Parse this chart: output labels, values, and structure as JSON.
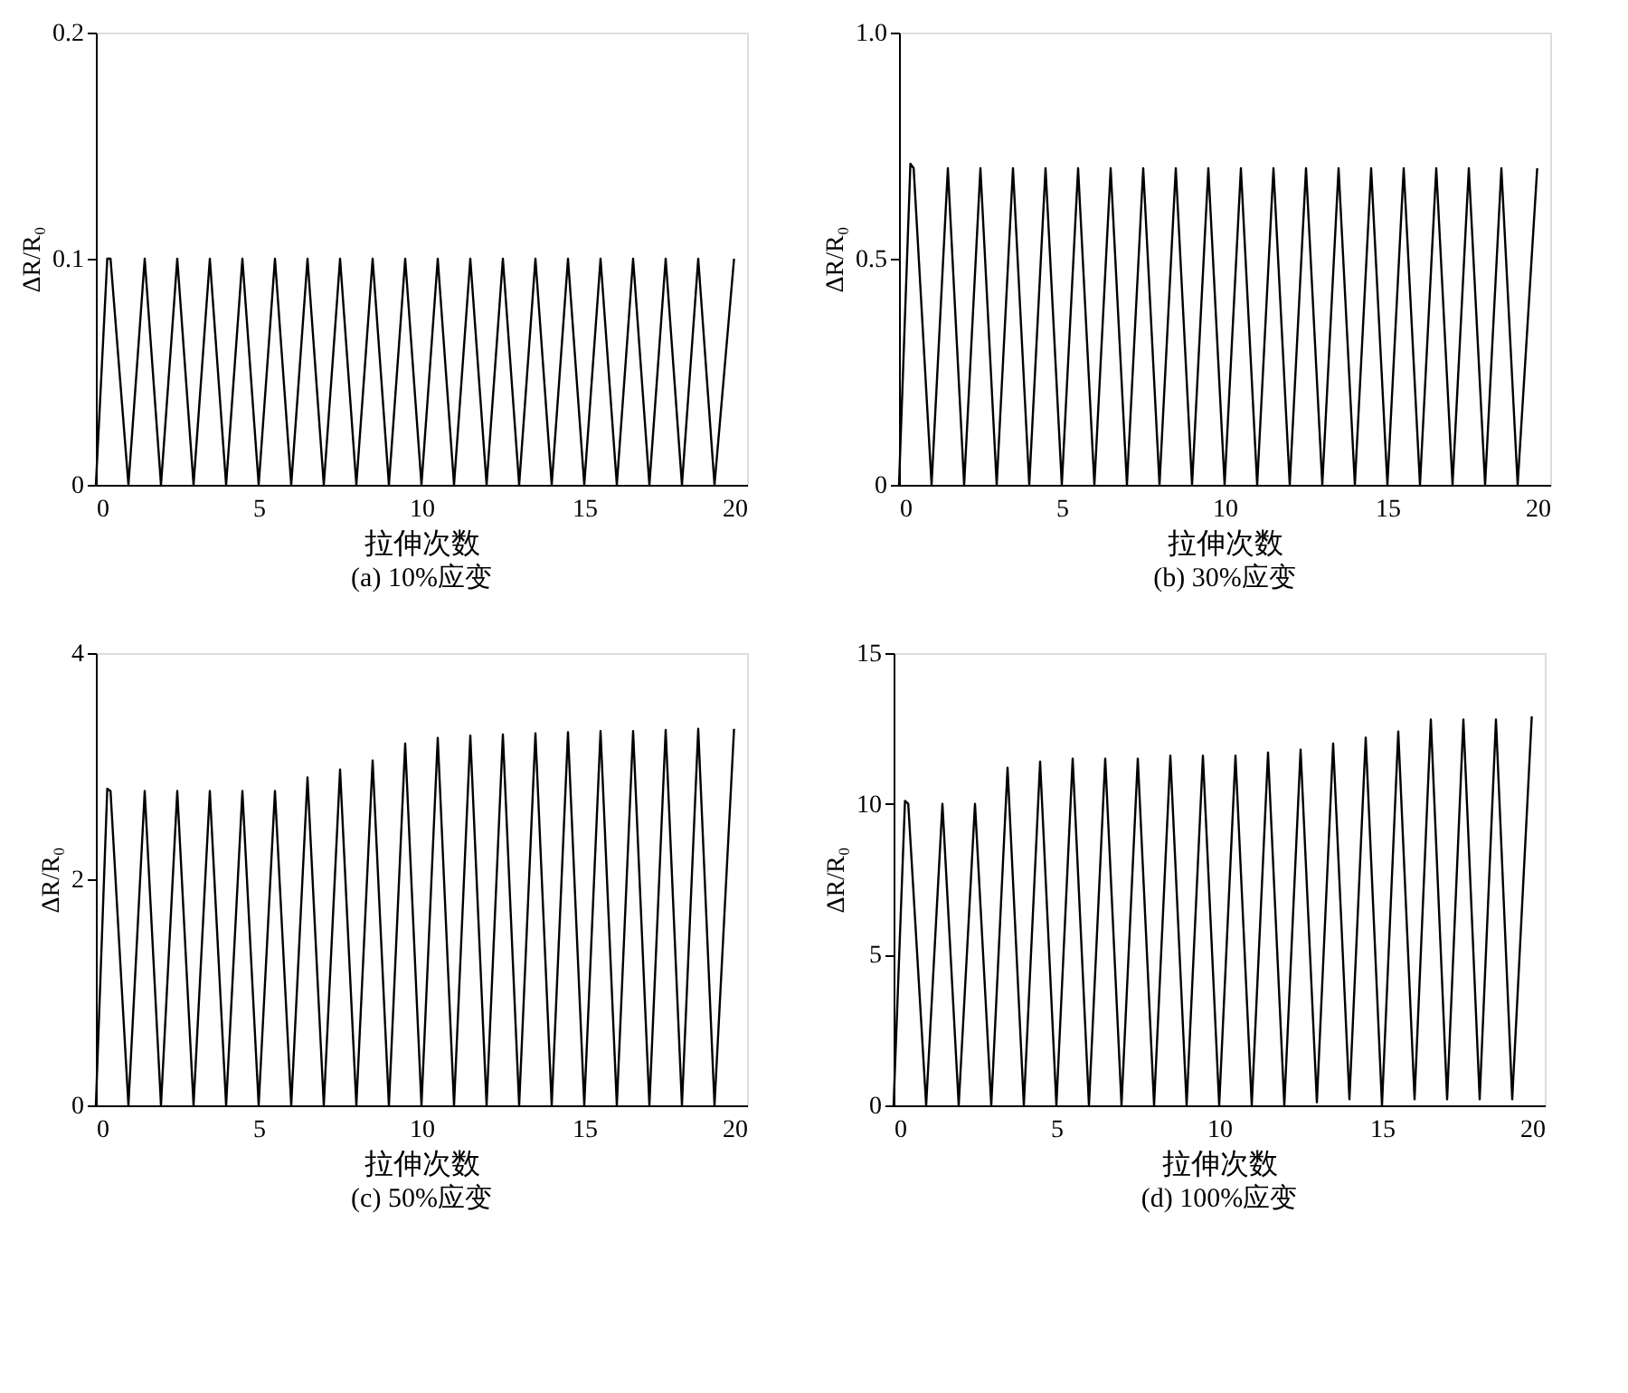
{
  "chart_data": [
    {
      "type": "line",
      "title": "(a) 10%应变",
      "xlabel": "拉伸次数",
      "ylabel": "ΔR/R₀",
      "xlim": [
        0,
        20
      ],
      "xticks": [
        0,
        5,
        10,
        15,
        20
      ],
      "ylim": [
        0,
        0.2
      ],
      "yticks": [
        0,
        0.1,
        0.2
      ],
      "x": [
        0,
        0.35,
        0.45,
        1,
        1.5,
        2,
        2.5,
        3,
        3.5,
        4,
        4.5,
        5,
        5.5,
        6,
        6.5,
        7,
        7.5,
        8,
        8.5,
        9,
        9.5,
        10,
        10.5,
        11,
        11.5,
        12,
        12.5,
        13,
        13.5,
        14,
        14.5,
        15,
        15.5,
        16,
        16.5,
        17,
        17.5,
        18,
        18.5,
        19,
        19.6
      ],
      "series": [
        {
          "color": "#000000",
          "values": [
            0,
            0.1,
            0.1,
            0,
            0.1,
            0,
            0.1,
            0,
            0.1,
            0,
            0.1,
            0,
            0.1,
            0,
            0.1,
            0,
            0.1,
            0,
            0.1,
            0,
            0.1,
            0,
            0.1,
            0,
            0.1,
            0,
            0.1,
            0,
            0.1,
            0,
            0.1,
            0,
            0.1,
            0,
            0.1,
            0,
            0.1,
            0,
            0.1,
            0,
            0.1
          ]
        }
      ]
    },
    {
      "type": "line",
      "title": "(b) 30%应变",
      "xlabel": "拉伸次数",
      "ylabel": "ΔR/R₀",
      "xlim": [
        0,
        20
      ],
      "xticks": [
        0,
        5,
        10,
        15,
        20
      ],
      "ylim": [
        0,
        1
      ],
      "yticks": [
        0,
        0.5,
        {
          "value": 1,
          "label": "1.0"
        }
      ],
      "x": [
        0,
        0.35,
        0.45,
        1,
        1.5,
        2,
        2.5,
        3,
        3.5,
        4,
        4.5,
        5,
        5.5,
        6,
        6.5,
        7,
        7.5,
        8,
        8.5,
        9,
        9.5,
        10,
        10.5,
        11,
        11.5,
        12,
        12.5,
        13,
        13.5,
        14,
        14.5,
        15,
        15.5,
        16,
        16.5,
        17,
        17.5,
        18,
        18.5,
        19,
        19.6
      ],
      "series": [
        {
          "color": "#000000",
          "values": [
            0,
            0.71,
            0.7,
            0,
            0.7,
            0,
            0.7,
            0,
            0.7,
            0,
            0.7,
            0,
            0.7,
            0,
            0.7,
            0,
            0.7,
            0,
            0.7,
            0,
            0.7,
            0,
            0.7,
            0,
            0.7,
            0,
            0.7,
            0,
            0.7,
            0,
            0.7,
            0,
            0.7,
            0,
            0.7,
            0,
            0.7,
            0,
            0.7,
            0,
            0.7
          ]
        }
      ]
    },
    {
      "type": "line",
      "title": "(c) 50%应变",
      "xlabel": "拉伸次数",
      "ylabel": "ΔR/R₀",
      "xlim": [
        0,
        20
      ],
      "xticks": [
        0,
        5,
        10,
        15,
        20
      ],
      "ylim": [
        0,
        4
      ],
      "yticks": [
        0,
        2,
        4
      ],
      "x": [
        0,
        0.35,
        0.45,
        1,
        1.5,
        2,
        2.5,
        3,
        3.5,
        4,
        4.5,
        5,
        5.5,
        6,
        6.5,
        7,
        7.5,
        8,
        8.5,
        9,
        9.5,
        10,
        10.5,
        11,
        11.5,
        12,
        12.5,
        13,
        13.5,
        14,
        14.5,
        15,
        15.5,
        16,
        16.5,
        17,
        17.5,
        18,
        18.5,
        19,
        19.6
      ],
      "series": [
        {
          "color": "#000000",
          "values": [
            0,
            2.8,
            2.78,
            0,
            2.78,
            0,
            2.78,
            0,
            2.78,
            0,
            2.78,
            0,
            2.78,
            0,
            2.9,
            0,
            2.97,
            0,
            3.05,
            0,
            3.2,
            0,
            3.25,
            0,
            3.27,
            0,
            3.28,
            0,
            3.29,
            0,
            3.3,
            0,
            3.31,
            0,
            3.31,
            0,
            3.32,
            0,
            3.33,
            0,
            3.33
          ]
        }
      ]
    },
    {
      "type": "line",
      "title": "(d) 100%应变",
      "xlabel": "拉伸次数",
      "ylabel": "ΔR/R₀",
      "xlim": [
        0,
        20
      ],
      "xticks": [
        0,
        5,
        10,
        15,
        20
      ],
      "ylim": [
        0,
        15
      ],
      "yticks": [
        0,
        5,
        10,
        15
      ],
      "x": [
        0,
        0.35,
        0.45,
        1,
        1.5,
        2,
        2.5,
        3,
        3.5,
        4,
        4.5,
        5,
        5.5,
        6,
        6.5,
        7,
        7.5,
        8,
        8.5,
        9,
        9.5,
        10,
        10.5,
        11,
        11.5,
        12,
        12.5,
        13,
        13.5,
        14,
        14.5,
        15,
        15.5,
        16,
        16.5,
        17,
        17.5,
        18,
        18.5,
        19,
        19.6
      ],
      "series": [
        {
          "color": "#000000",
          "values": [
            0,
            10.1,
            10,
            0,
            10,
            0,
            10,
            0,
            11.2,
            0,
            11.4,
            0,
            11.5,
            0,
            11.5,
            0,
            11.5,
            0,
            11.6,
            0,
            11.6,
            0,
            11.6,
            0,
            11.7,
            0,
            11.8,
            0.1,
            12.0,
            0.2,
            12.2,
            0,
            12.4,
            0.2,
            12.8,
            0.2,
            12.8,
            0.2,
            12.8,
            0.2,
            12.9
          ]
        }
      ]
    }
  ]
}
